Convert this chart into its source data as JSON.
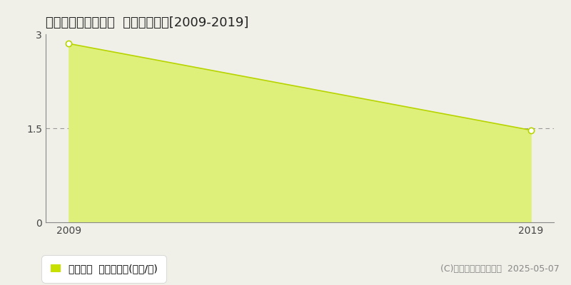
{
  "title": "うきは市吉井町江南  土地価格推移[2009-2019]",
  "years": [
    2009,
    2019
  ],
  "values": [
    2.85,
    1.47
  ],
  "ylim": [
    0,
    3
  ],
  "yticks": [
    0,
    1.5,
    3
  ],
  "xticks": [
    2009,
    2019
  ],
  "line_color": "#b8d400",
  "fill_color": "#dff07a",
  "fill_alpha": 1.0,
  "marker_facecolor": "white",
  "marker_edgecolor": "#b8d400",
  "grid_color": "#999999",
  "bg_color": "#f0f0e8",
  "plot_bg_color": "#f0f0e8",
  "spine_color": "#888888",
  "legend_label": "土地価格  平均坪単価(万円/坪)",
  "legend_square_color": "#c8e000",
  "copyright_text": "(C)土地価格ドットコム  2025-05-07",
  "title_fontsize": 13,
  "axis_fontsize": 10,
  "legend_fontsize": 10,
  "copyright_fontsize": 9
}
